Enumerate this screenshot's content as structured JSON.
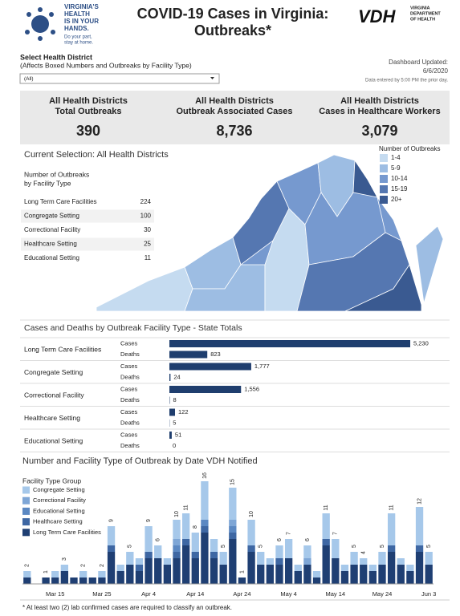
{
  "header": {
    "logo_lines": [
      "VIRGINIA'S",
      "HEALTH",
      "IS IN YOUR",
      "HANDS."
    ],
    "logo_tagline": [
      "Do your part,",
      "stay at home."
    ],
    "title_lines": [
      "COVID-19 Cases in Virginia:",
      "Outbreaks*"
    ],
    "vdh": "VDH",
    "vdh_sub": [
      "VIRGINIA",
      "DEPARTMENT",
      "OF HEALTH"
    ]
  },
  "filter": {
    "label": "Select Health District",
    "note": "(Affects Boxed Numbers and Outbreaks by Facility Type)",
    "selected": "(All)"
  },
  "updated": {
    "label": "Dashboard Updated:",
    "date": "6/6/2020",
    "note": "Data entered by 5:00 PM the prior day."
  },
  "stats": [
    {
      "label_lines": [
        "All Health Districts",
        "Total Outbreaks"
      ],
      "value": "390"
    },
    {
      "label_lines": [
        "All Health Districts",
        "Outbreak Associated Cases"
      ],
      "value": "8,736"
    },
    {
      "label_lines": [
        "All Health Districts",
        "Cases in Healthcare Workers"
      ],
      "value": "3,079"
    }
  ],
  "selection": {
    "title": "Current Selection: All Health Districts",
    "table_heading": [
      "Number of Outbreaks",
      "by Facility Type"
    ],
    "rows": [
      [
        "Long Term Care Facilities",
        "224"
      ],
      [
        "Congregate Setting",
        "100"
      ],
      [
        "Correctional Facility",
        "30"
      ],
      [
        "Healthcare Setting",
        "25"
      ],
      [
        "Educational Setting",
        "11"
      ]
    ]
  },
  "map": {
    "legend_title": "Number of Outbreaks",
    "legend": [
      {
        "label": "1-4",
        "color": "#c5dbf0"
      },
      {
        "label": "5-9",
        "color": "#9dbde3"
      },
      {
        "label": "10-14",
        "color": "#7699cf"
      },
      {
        "label": "15-19",
        "color": "#5577b1"
      },
      {
        "label": "20+",
        "color": "#3a5a91"
      }
    ]
  },
  "chart_data": [
    {
      "type": "hbar",
      "title": "Cases and Deaths by Outbreak Facility Type - State Totals",
      "categories": [
        "Long Term Care Facilities",
        "Congregate Setting",
        "Correctional Facility",
        "Healthcare Setting",
        "Educational Setting"
      ],
      "series": [
        {
          "name": "Cases",
          "color": "#1f3e6e",
          "values": [
            5230,
            1777,
            1556,
            122,
            51
          ],
          "value_labels": [
            "5,230",
            "1,777",
            "1,556",
            "122",
            "51"
          ]
        },
        {
          "name": "Deaths",
          "color": "#1f3e6e",
          "values": [
            823,
            24,
            8,
            5,
            0
          ]
        }
      ]
    },
    {
      "type": "stacked-bar",
      "title": "Number and Facility Type of Outbreak by Date VDH Notified",
      "legend_title": "Facility Type Group",
      "categories": [
        null,
        null,
        null,
        "Mar 15",
        null,
        null,
        null,
        null,
        "Mar 25",
        null,
        null,
        null,
        null,
        "Apr 4",
        null,
        null,
        null,
        null,
        "Apr 14",
        null,
        null,
        null,
        null,
        "Apr 24",
        null,
        null,
        null,
        null,
        "May 4",
        null,
        null,
        null,
        null,
        "May 14",
        null,
        null,
        null,
        null,
        "May 24",
        null,
        null,
        null,
        null,
        "Jun 3"
      ],
      "series": [
        {
          "name": "Congregate Setting",
          "color": "#a6c8ea",
          "values": [
            1,
            0,
            0,
            1,
            1,
            0,
            1,
            0,
            1,
            3,
            1,
            2,
            1,
            4,
            2,
            1,
            3,
            4,
            3,
            6,
            2,
            2,
            5,
            0,
            4,
            2,
            1,
            2,
            3,
            1,
            2,
            1,
            4,
            3,
            1,
            2,
            1,
            1,
            2,
            5,
            1,
            1,
            6,
            2
          ]
        },
        {
          "name": "Correctional Facility",
          "color": "#7ea6d6",
          "values": [
            0,
            0,
            0,
            0,
            0,
            0,
            0,
            0,
            0,
            0,
            0,
            0,
            0,
            0,
            0,
            0,
            1,
            0,
            0,
            0,
            0,
            0,
            1,
            0,
            0,
            0,
            0,
            0,
            0,
            0,
            1,
            0,
            0,
            0,
            0,
            0,
            0,
            0,
            0,
            0,
            0,
            0,
            0,
            0
          ]
        },
        {
          "name": "Educational Setting",
          "color": "#5b88c2",
          "values": [
            0,
            0,
            0,
            0,
            0,
            0,
            0,
            0,
            0,
            0,
            0,
            0,
            0,
            0,
            0,
            0,
            1,
            0,
            0,
            1,
            0,
            0,
            1,
            0,
            0,
            0,
            0,
            0,
            0,
            0,
            0,
            0,
            0,
            0,
            0,
            0,
            0,
            0,
            0,
            0,
            0,
            0,
            0,
            0
          ]
        },
        {
          "name": "Healthcare Setting",
          "color": "#3e67a3",
          "values": [
            0,
            0,
            0,
            0,
            0,
            0,
            0,
            0,
            0,
            1,
            0,
            0,
            1,
            1,
            0,
            0,
            1,
            1,
            1,
            1,
            1,
            0,
            1,
            0,
            1,
            0,
            0,
            1,
            0,
            0,
            0,
            0,
            1,
            0,
            0,
            0,
            0,
            0,
            0,
            1,
            0,
            0,
            1,
            0
          ]
        },
        {
          "name": "Long Term Care Facilities",
          "color": "#1f3f73",
          "values": [
            1,
            0,
            1,
            1,
            2,
            1,
            1,
            1,
            1,
            5,
            2,
            3,
            2,
            4,
            4,
            3,
            4,
            6,
            4,
            8,
            4,
            3,
            7,
            1,
            5,
            3,
            3,
            3,
            4,
            2,
            3,
            1,
            6,
            4,
            2,
            3,
            3,
            2,
            3,
            5,
            3,
            2,
            5,
            3
          ]
        }
      ],
      "total_labels": [
        2,
        null,
        1,
        null,
        3,
        null,
        2,
        null,
        2,
        9,
        null,
        5,
        null,
        9,
        6,
        null,
        10,
        11,
        8,
        16,
        null,
        5,
        15,
        1,
        10,
        5,
        null,
        6,
        7,
        null,
        6,
        null,
        11,
        7,
        null,
        5,
        4,
        null,
        5,
        11,
        null,
        null,
        12,
        5
      ]
    }
  ],
  "footnote": "* At least two (2) lab confirmed cases are required to classify an outbreak."
}
